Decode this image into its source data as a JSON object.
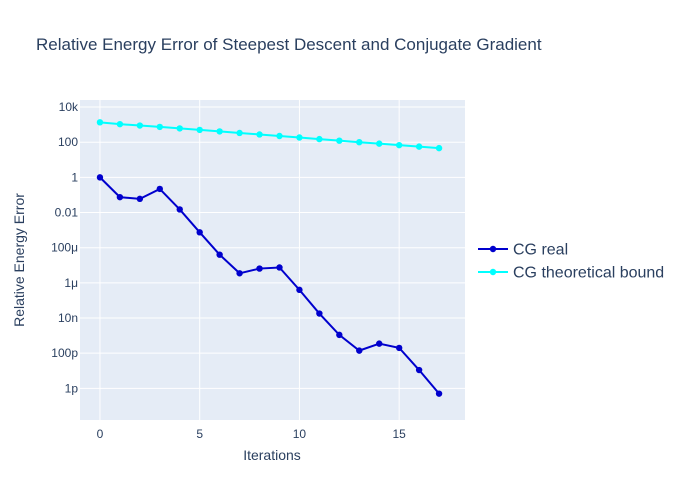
{
  "chart_data": {
    "type": "line",
    "title": "Relative Energy Error of Steepest Descent and Conjugate Gradient",
    "xlabel": "Iterations",
    "ylabel": "Relative Energy Error",
    "xlim": [
      -1,
      18.3
    ],
    "ylim_log10": [
      -13.8,
      4.4
    ],
    "y_scale": "log",
    "x_ticks": [
      0,
      5,
      10,
      15
    ],
    "y_ticks": [
      {
        "value": 10000,
        "label": "10k"
      },
      {
        "value": 100,
        "label": "100"
      },
      {
        "value": 1,
        "label": "1"
      },
      {
        "value": 0.01,
        "label": "0.01"
      },
      {
        "value": 0.0001,
        "label": "100μ"
      },
      {
        "value": 1e-06,
        "label": "1μ"
      },
      {
        "value": 1e-08,
        "label": "10n"
      },
      {
        "value": 1e-10,
        "label": "100p"
      },
      {
        "value": 1e-12,
        "label": "1p"
      }
    ],
    "grid": true,
    "legend_position": "right",
    "background": "#e5ecf6",
    "series": [
      {
        "name": "CG real",
        "color": "#0000cd",
        "x": [
          0,
          1,
          2,
          3,
          4,
          5,
          6,
          7,
          8,
          9,
          10,
          11,
          12,
          13,
          14,
          15,
          16,
          17
        ],
        "y": [
          1,
          0.075,
          0.06,
          0.22,
          0.015,
          0.00075,
          4e-05,
          3.5e-06,
          6.5e-06,
          7.5e-06,
          4e-07,
          1.8e-08,
          1.1e-09,
          1.4e-10,
          3.5e-10,
          2e-10,
          1.1e-11,
          5e-13
        ]
      },
      {
        "name": "CG theoretical bound",
        "color": "#00ffff",
        "x": [
          0,
          1,
          2,
          3,
          4,
          5,
          6,
          7,
          8,
          9,
          10,
          11,
          12,
          13,
          14,
          15,
          16,
          17
        ],
        "y": [
          1350,
          1060,
          885,
          740,
          610,
          500,
          410,
          335,
          275,
          225,
          185,
          150,
          122,
          100,
          83,
          68,
          56,
          46
        ]
      }
    ]
  }
}
